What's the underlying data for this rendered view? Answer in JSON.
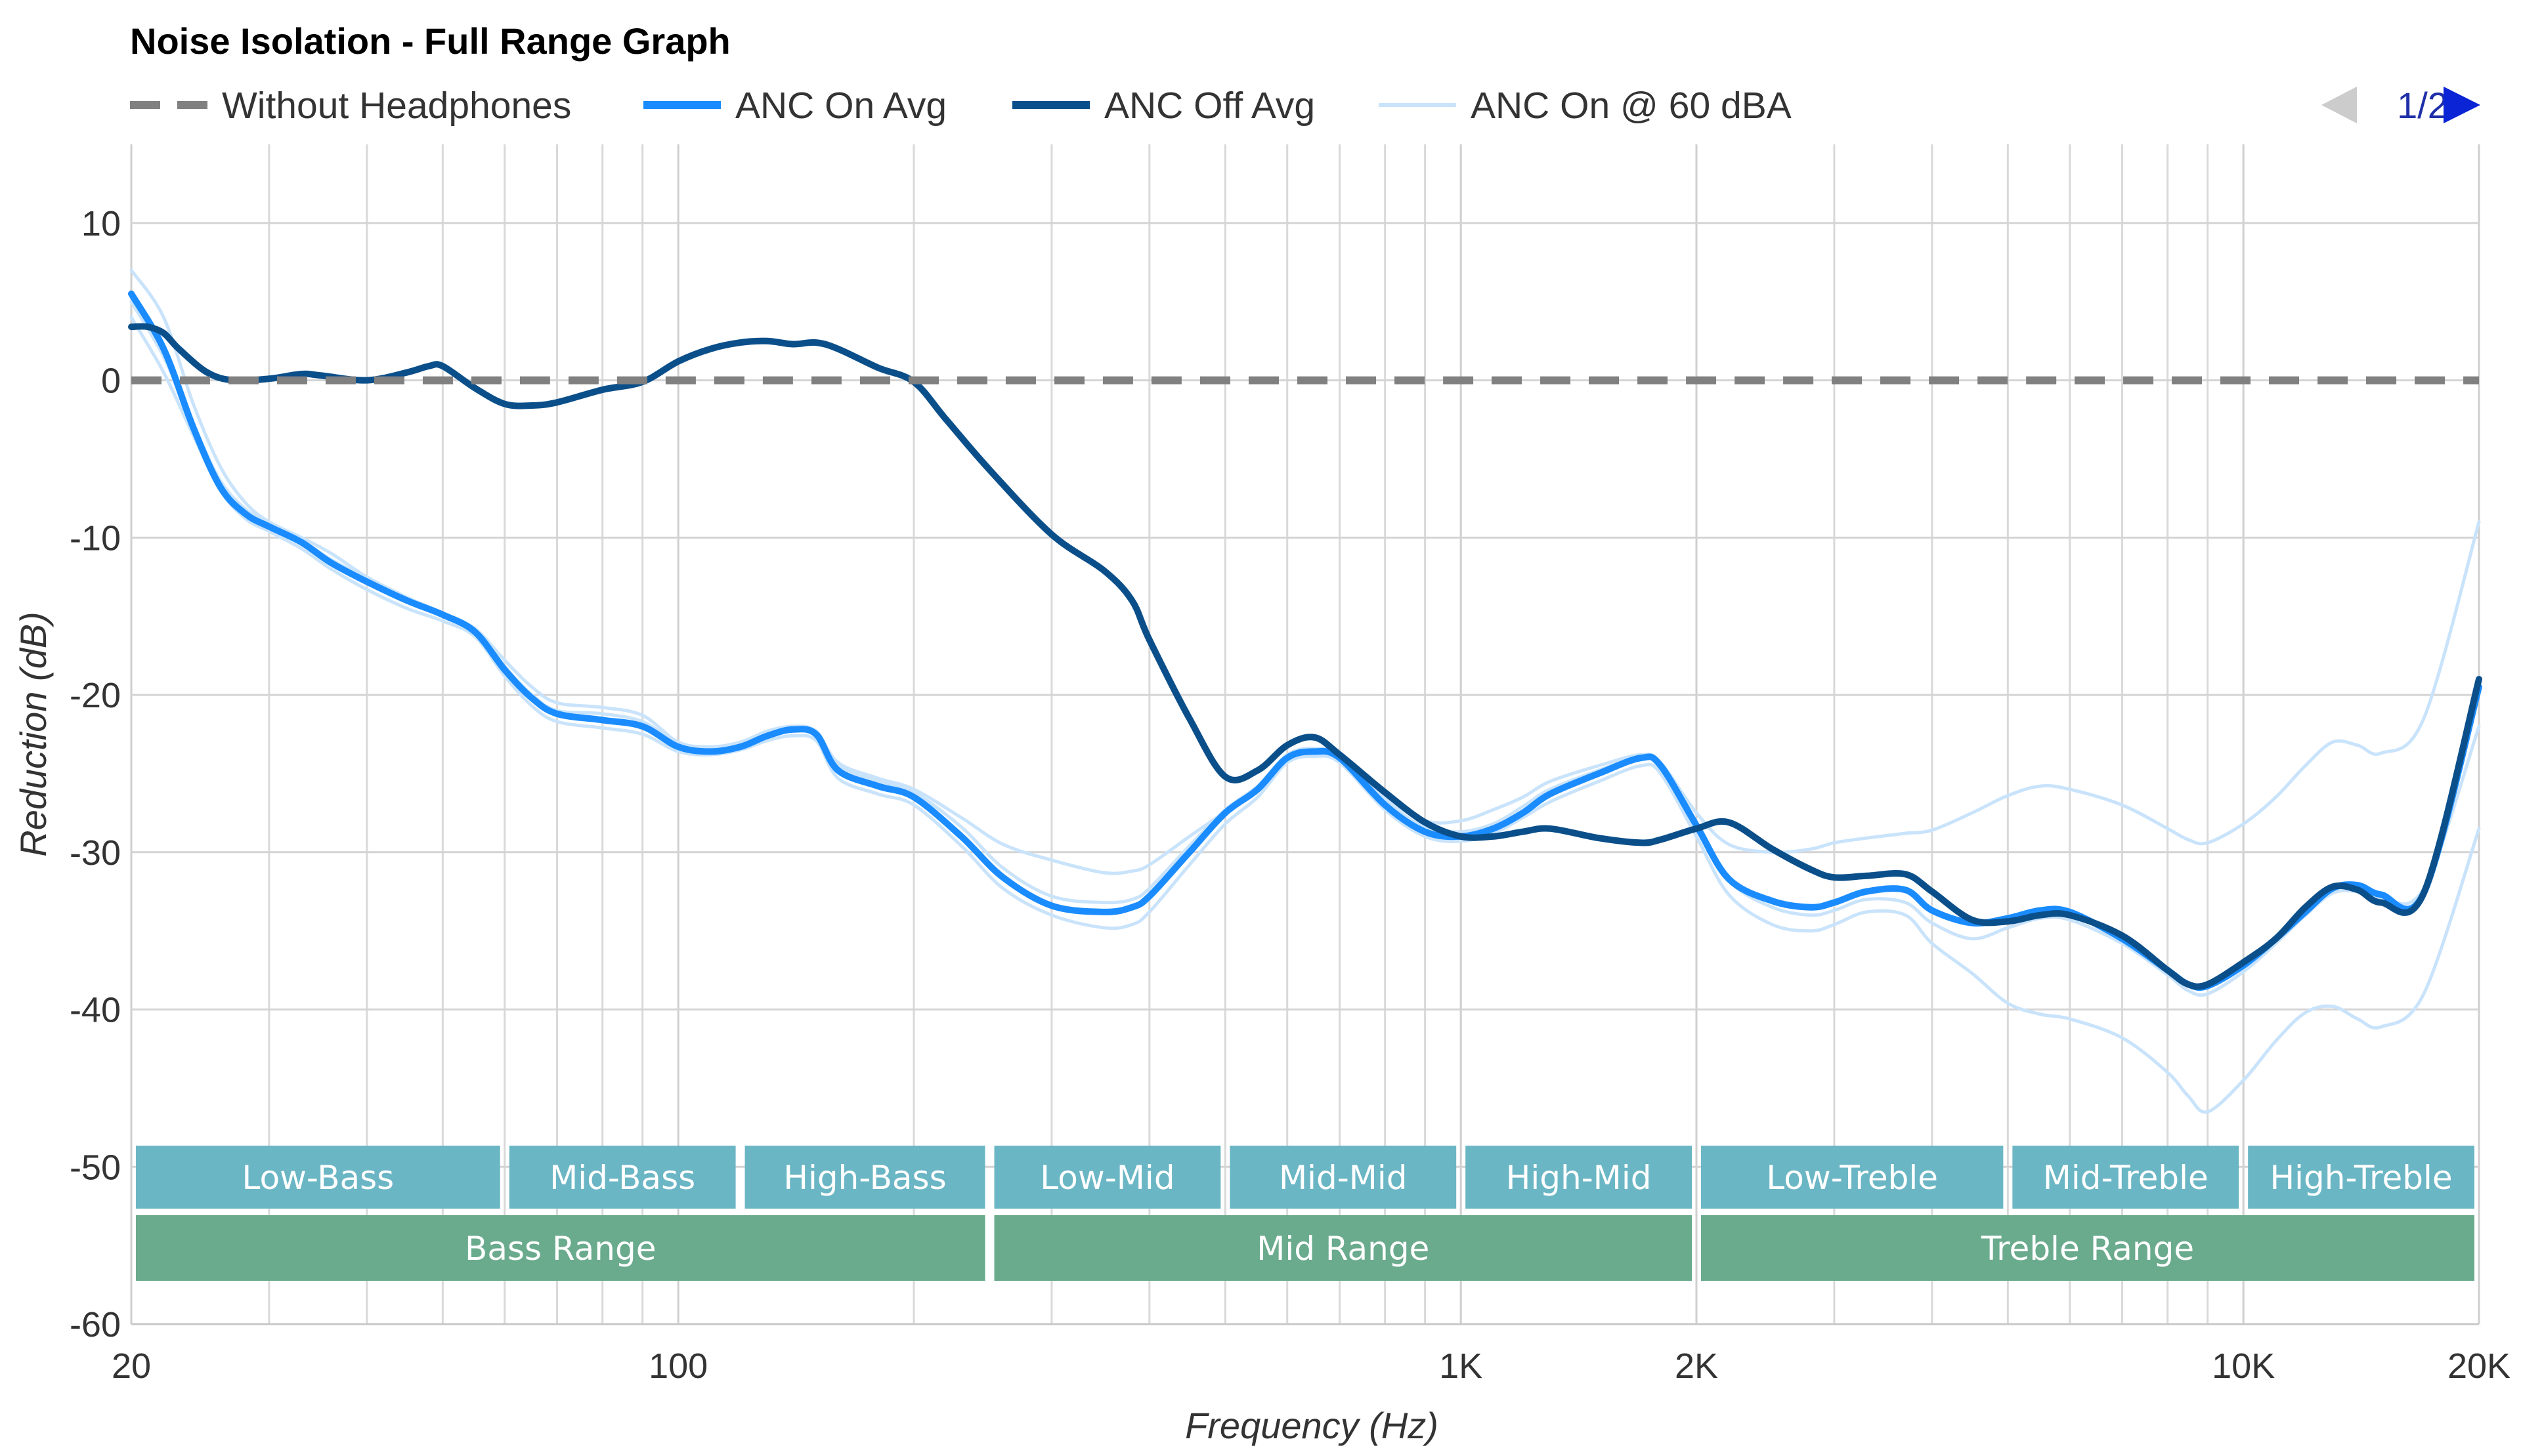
{
  "chart_data": {
    "type": "line",
    "title": "Noise Isolation - Full Range Graph",
    "xlabel": "Frequency (Hz)",
    "ylabel": "Reduction (dB)",
    "x_scale": "log",
    "xlim": [
      20,
      20000
    ],
    "ylim": [
      -60,
      15
    ],
    "grid": true,
    "legend_position": "top-left",
    "pager": {
      "text": "1/2",
      "prev_icon": "triangle-left-icon",
      "next_icon": "triangle-right-icon"
    },
    "x_ticks": [
      {
        "value": 20,
        "label": "20"
      },
      {
        "value": 100,
        "label": "100"
      },
      {
        "value": 1000,
        "label": "1K"
      },
      {
        "value": 2000,
        "label": "2K"
      },
      {
        "value": 10000,
        "label": "10K"
      },
      {
        "value": 20000,
        "label": "20K"
      }
    ],
    "y_ticks": [
      {
        "value": 10,
        "label": "10"
      },
      {
        "value": 0,
        "label": "0"
      },
      {
        "value": -10,
        "label": "-10"
      },
      {
        "value": -20,
        "label": "-20"
      },
      {
        "value": -30,
        "label": "-30"
      },
      {
        "value": -40,
        "label": "-40"
      },
      {
        "value": -50,
        "label": "-50"
      },
      {
        "value": -60,
        "label": "-60"
      }
    ],
    "minor_x_gridlines": [
      30,
      40,
      50,
      60,
      70,
      80,
      90,
      200,
      300,
      400,
      500,
      600,
      700,
      800,
      900,
      3000,
      4000,
      5000,
      6000,
      7000,
      8000,
      9000
    ],
    "series": [
      {
        "name": "Without Headphones",
        "color": "#808080",
        "style": "dashed",
        "x": [
          20,
          20000
        ],
        "y": [
          0,
          0
        ]
      },
      {
        "name": "ANC On Avg",
        "color": "#1a8cff",
        "style": "solid",
        "x": [
          20,
          22,
          24,
          26,
          28,
          30,
          33,
          36,
          40,
          45,
          50,
          55,
          60,
          65,
          70,
          80,
          90,
          100,
          110,
          120,
          130,
          140,
          150,
          160,
          180,
          200,
          230,
          260,
          300,
          350,
          380,
          400,
          450,
          500,
          550,
          600,
          650,
          700,
          800,
          900,
          1000,
          1100,
          1200,
          1300,
          1500,
          1700,
          1800,
          2000,
          2200,
          2500,
          2800,
          3000,
          3300,
          3700,
          4000,
          4500,
          5000,
          5500,
          6000,
          7000,
          8000,
          8500,
          9000,
          10000,
          11000,
          12000,
          13000,
          14000,
          15000,
          17000,
          20000
        ],
        "y": [
          5.5,
          2,
          -3,
          -6.8,
          -8.5,
          -9.3,
          -10.3,
          -11.6,
          -12.8,
          -14,
          -14.9,
          -16,
          -18.4,
          -20.2,
          -21.2,
          -21.6,
          -22,
          -23.3,
          -23.6,
          -23.3,
          -22.6,
          -22.2,
          -22.5,
          -24.8,
          -25.8,
          -26.5,
          -29,
          -31.6,
          -33.4,
          -33.8,
          -33.5,
          -32.8,
          -30,
          -27.5,
          -26,
          -24,
          -23.6,
          -24,
          -27,
          -28.7,
          -29,
          -28.5,
          -27.5,
          -26.3,
          -25,
          -24,
          -24.5,
          -28.3,
          -31.7,
          -33.1,
          -33.5,
          -33.2,
          -32.5,
          -32.4,
          -33.7,
          -34.5,
          -34.2,
          -33.7,
          -33.8,
          -35.5,
          -37.5,
          -38.4,
          -38.5,
          -37.2,
          -35.5,
          -33.8,
          -32.3,
          -32.1,
          -32.7,
          -32.6,
          -19.5
        ]
      },
      {
        "name": "ANC Off Avg",
        "color": "#0b4f8a",
        "style": "solid",
        "x": [
          20,
          21,
          22,
          23,
          25,
          27,
          30,
          33,
          35,
          40,
          45,
          48,
          50,
          55,
          60,
          65,
          70,
          80,
          90,
          100,
          110,
          120,
          130,
          140,
          150,
          160,
          180,
          200,
          220,
          250,
          300,
          350,
          380,
          400,
          450,
          500,
          550,
          600,
          650,
          700,
          800,
          900,
          1000,
          1100,
          1200,
          1300,
          1500,
          1700,
          1800,
          2000,
          2200,
          2500,
          2800,
          3000,
          3300,
          3700,
          4000,
          4500,
          5000,
          5500,
          6000,
          7000,
          8000,
          8500,
          9000,
          10000,
          11000,
          12000,
          13000,
          14000,
          15000,
          17000,
          20000
        ],
        "y": [
          3.4,
          3.4,
          3,
          2,
          0.5,
          0,
          0.1,
          0.4,
          0.3,
          0,
          0.5,
          0.9,
          0.9,
          -0.5,
          -1.5,
          -1.6,
          -1.4,
          -0.6,
          -0.1,
          1.2,
          2,
          2.4,
          2.5,
          2.3,
          2.4,
          2,
          0.8,
          -0.1,
          -2.5,
          -5.7,
          -9.8,
          -12.1,
          -14,
          -16.5,
          -21.5,
          -25.2,
          -24.8,
          -23.2,
          -22.7,
          -23.8,
          -26.2,
          -28.1,
          -29,
          -29,
          -28.7,
          -28.5,
          -29.1,
          -29.4,
          -29.2,
          -28.5,
          -28.1,
          -29.8,
          -31.1,
          -31.6,
          -31.5,
          -31.4,
          -32.5,
          -34.3,
          -34.4,
          -34,
          -34,
          -35.3,
          -37.5,
          -38.4,
          -38.4,
          -37,
          -35.5,
          -33.5,
          -32.2,
          -32.4,
          -33.2,
          -32.6,
          -19
        ]
      },
      {
        "name": "ANC On @ 60 dBA",
        "color": "#c9e3fb",
        "style": "solid",
        "x": [
          20,
          22,
          24,
          26,
          28,
          30,
          33,
          36,
          40,
          45,
          50,
          55,
          60,
          65,
          70,
          80,
          90,
          100,
          110,
          120,
          130,
          140,
          150,
          160,
          180,
          200,
          230,
          260,
          300,
          350,
          380,
          400,
          450,
          500,
          550,
          600,
          650,
          700,
          800,
          900,
          1000,
          1100,
          1200,
          1300,
          1500,
          1700,
          1800,
          2000,
          2200,
          2500,
          2800,
          3000,
          3300,
          3700,
          4000,
          4500,
          5000,
          5500,
          6000,
          7000,
          8000,
          8500,
          9000,
          10000,
          11000,
          12000,
          13000,
          14000,
          15000,
          17000,
          20000
        ],
        "y": [
          7,
          4,
          -1.5,
          -5.5,
          -7.8,
          -9,
          -10,
          -11,
          -12.5,
          -13.8,
          -14.8,
          -15.8,
          -17.8,
          -19.5,
          -20.5,
          -20.8,
          -21.3,
          -23,
          -23.3,
          -23,
          -22.3,
          -22,
          -22.3,
          -24.3,
          -25.3,
          -26,
          -27.8,
          -29.5,
          -30.5,
          -31.3,
          -31.2,
          -30.8,
          -29,
          -27.4,
          -25.8,
          -23.8,
          -23.4,
          -23.8,
          -26.5,
          -28,
          -28,
          -27.3,
          -26.5,
          -25.5,
          -24.5,
          -23.8,
          -24.3,
          -27.5,
          -29.5,
          -30,
          -29.8,
          -29.4,
          -29.1,
          -28.8,
          -28.6,
          -27.5,
          -26.4,
          -25.8,
          -26,
          -27,
          -28.5,
          -29.2,
          -29.4,
          -28.2,
          -26.5,
          -24.5,
          -23,
          -23.2,
          -23.7,
          -21.5,
          -9
        ]
      },
      {
        "name": "",
        "color": "#c9e3fb",
        "style": "solid",
        "x": [
          20,
          22,
          24,
          26,
          28,
          30,
          33,
          36,
          40,
          45,
          50,
          55,
          60,
          65,
          70,
          80,
          90,
          100,
          110,
          120,
          130,
          140,
          150,
          160,
          180,
          200,
          230,
          260,
          300,
          350,
          380,
          400,
          450,
          500,
          550,
          600,
          650,
          700,
          800,
          900,
          1000,
          1100,
          1200,
          1300,
          1500,
          1700,
          1800,
          2000,
          2200,
          2500,
          2800,
          3000,
          3300,
          3700,
          4000,
          4500,
          5000,
          5500,
          6000,
          7000,
          8000,
          8500,
          9000,
          10000,
          11000,
          12000,
          13000,
          14000,
          15000,
          17000,
          20000
        ],
        "y": [
          4,
          0.5,
          -3.5,
          -7,
          -8.8,
          -9.6,
          -10.7,
          -12,
          -13.3,
          -14.5,
          -15.3,
          -16.3,
          -18.8,
          -20.7,
          -21.7,
          -22.1,
          -22.5,
          -23.6,
          -23.8,
          -23.5,
          -22.9,
          -22.6,
          -22.9,
          -25.3,
          -26.3,
          -27,
          -29.6,
          -32.3,
          -34,
          -34.8,
          -34.6,
          -33.8,
          -30.8,
          -28.2,
          -26.5,
          -24.3,
          -23.9,
          -24.3,
          -27.3,
          -29,
          -29.3,
          -28.8,
          -27.8,
          -26.8,
          -25.5,
          -24.5,
          -25,
          -29,
          -32.7,
          -34.6,
          -35,
          -34.6,
          -33.8,
          -34,
          -35.8,
          -37.7,
          -39.6,
          -40.3,
          -40.6,
          -41.8,
          -44,
          -45.5,
          -46.5,
          -44.5,
          -42,
          -40.2,
          -39.8,
          -40.6,
          -41.1,
          -39,
          -28.5
        ]
      },
      {
        "name": "",
        "color": "#c9e3fb",
        "style": "solid",
        "x": [
          20,
          22,
          24,
          26,
          28,
          30,
          33,
          36,
          40,
          45,
          50,
          55,
          60,
          65,
          70,
          80,
          90,
          100,
          110,
          120,
          130,
          140,
          150,
          160,
          180,
          200,
          230,
          260,
          300,
          350,
          380,
          400,
          450,
          500,
          550,
          600,
          650,
          700,
          800,
          900,
          1000,
          1100,
          1200,
          1300,
          1500,
          1700,
          1800,
          2000,
          2200,
          2500,
          2800,
          3000,
          3300,
          3700,
          4000,
          4500,
          5000,
          5500,
          6000,
          7000,
          8000,
          8500,
          9000,
          10000,
          11000,
          12000,
          13000,
          14000,
          15000,
          17000,
          20000
        ],
        "y": [
          5,
          1.5,
          -2.8,
          -6.4,
          -8.2,
          -9.1,
          -10.2,
          -11.4,
          -12.6,
          -13.9,
          -14.9,
          -15.9,
          -18.2,
          -20,
          -21,
          -21.2,
          -21.7,
          -23.1,
          -23.4,
          -23.1,
          -22.4,
          -22.1,
          -22.4,
          -24.5,
          -25.5,
          -26.2,
          -28.4,
          -31,
          -32.8,
          -33.2,
          -33,
          -32.3,
          -29.6,
          -27.3,
          -25.8,
          -23.9,
          -23.5,
          -23.9,
          -26.7,
          -28.4,
          -28.7,
          -28.2,
          -27.1,
          -26,
          -24.8,
          -23.9,
          -24.4,
          -28.2,
          -31.8,
          -33.5,
          -34,
          -33.7,
          -33,
          -33.2,
          -34.5,
          -35.5,
          -34.8,
          -34.2,
          -34.3,
          -35.8,
          -37.8,
          -38.8,
          -39,
          -37.6,
          -35.8,
          -34,
          -32.6,
          -32.5,
          -32.9,
          -32.3,
          -22
        ]
      }
    ],
    "range_bands": {
      "sub_ranges": [
        {
          "label": "Low-Bass",
          "from": 20,
          "to": 60
        },
        {
          "label": "Mid-Bass",
          "from": 60,
          "to": 120
        },
        {
          "label": "High-Bass",
          "from": 120,
          "to": 250
        },
        {
          "label": "Low-Mid",
          "from": 250,
          "to": 500
        },
        {
          "label": "Mid-Mid",
          "from": 500,
          "to": 1000
        },
        {
          "label": "High-Mid",
          "from": 1000,
          "to": 2000
        },
        {
          "label": "Low-Treble",
          "from": 2000,
          "to": 5000
        },
        {
          "label": "Mid-Treble",
          "from": 5000,
          "to": 10000
        },
        {
          "label": "High-Treble",
          "from": 10000,
          "to": 20000
        }
      ],
      "main_ranges": [
        {
          "label": "Bass Range",
          "from": 20,
          "to": 250
        },
        {
          "label": "Mid Range",
          "from": 250,
          "to": 2000
        },
        {
          "label": "Treble Range",
          "from": 2000,
          "to": 20000
        }
      ],
      "sub_color": "#6bb6c4",
      "main_color": "#6aab8d"
    }
  }
}
